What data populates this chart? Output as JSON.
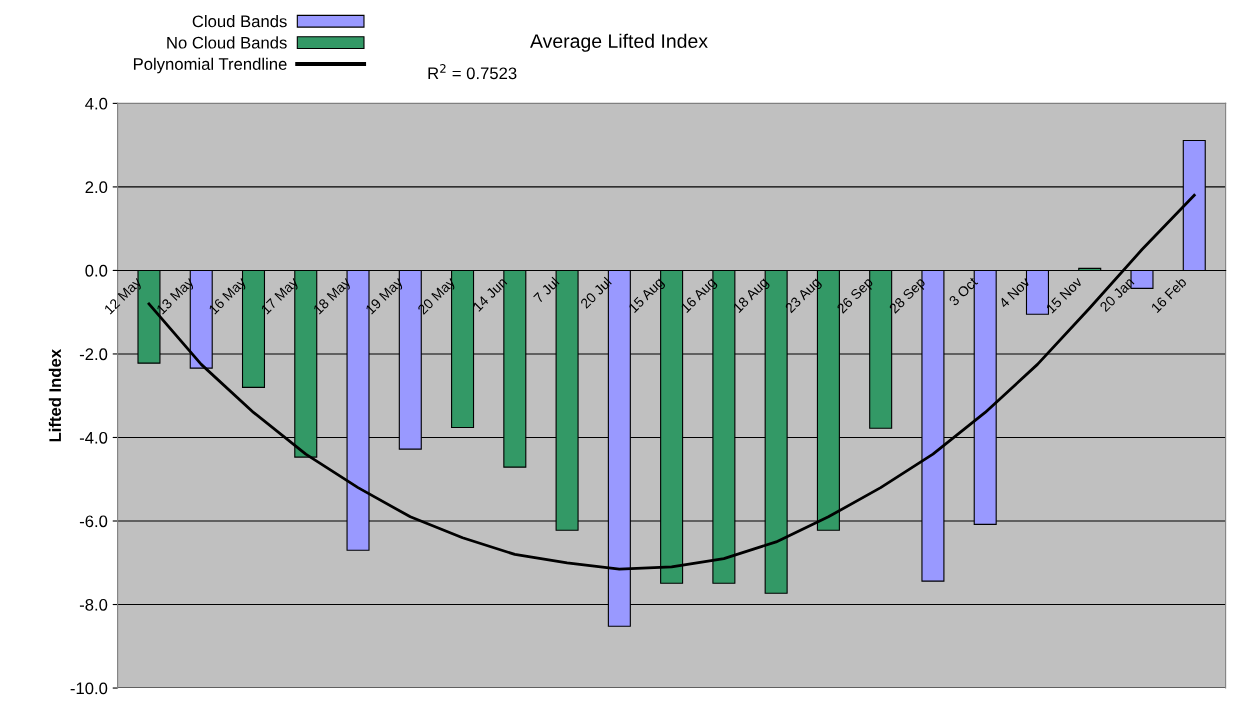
{
  "chart_data": {
    "type": "bar",
    "title": "Average Lifted Index",
    "ylabel": "Lifted Index",
    "categories": [
      "12 May",
      "13 May",
      "16 May",
      "17 May",
      "18 May",
      "19 May",
      "20 May",
      "14 Jun",
      "7 Jul",
      "20 Jul",
      "15 Aug",
      "16 Aug",
      "18 Aug",
      "23 Aug",
      "26 Sep",
      "28 Sep",
      "3 Oct",
      "4 Nov",
      "15 Nov",
      "20 Jan",
      "16 Feb"
    ],
    "series": [
      {
        "name": "Cloud Bands",
        "color": "#9999ff",
        "values": [
          null,
          -2.34,
          null,
          null,
          -6.7,
          -4.28,
          null,
          null,
          null,
          -8.52,
          null,
          null,
          null,
          null,
          null,
          -7.44,
          -6.08,
          -1.05,
          null,
          -0.43,
          3.11
        ]
      },
      {
        "name": "No Cloud Bands",
        "color": "#339966",
        "values": [
          -2.22,
          null,
          -2.8,
          -4.47,
          null,
          null,
          -3.76,
          -4.71,
          -6.22,
          null,
          -7.49,
          -7.49,
          -7.73,
          -6.22,
          -3.78,
          null,
          null,
          null,
          0.05,
          null,
          null
        ]
      },
      {
        "name": "Polynomial Trendline",
        "type": "line",
        "color": "#000000",
        "values": [
          -0.8,
          -2.25,
          -3.4,
          -4.4,
          -5.2,
          -5.9,
          -6.4,
          -6.8,
          -7.0,
          -7.15,
          -7.1,
          -6.9,
          -6.5,
          -5.9,
          -5.2,
          -4.4,
          -3.4,
          -2.25,
          -0.9,
          0.5,
          1.8
        ]
      }
    ],
    "ylim": [
      -10,
      4
    ],
    "yticks": [
      {
        "value": -10,
        "label": "-10.0"
      },
      {
        "value": -8,
        "label": "-8.0"
      },
      {
        "value": -6,
        "label": "-6.0"
      },
      {
        "value": -4,
        "label": "-4.0"
      },
      {
        "value": -2,
        "label": "-2.0"
      },
      {
        "value": 0,
        "label": "0.0"
      },
      {
        "value": 2,
        "label": "2.0"
      },
      {
        "value": 4,
        "label": "4.0"
      }
    ],
    "grid": "y",
    "legend": "top left",
    "annotations": [
      "R$^{2}$ = 0.7523"
    ]
  }
}
